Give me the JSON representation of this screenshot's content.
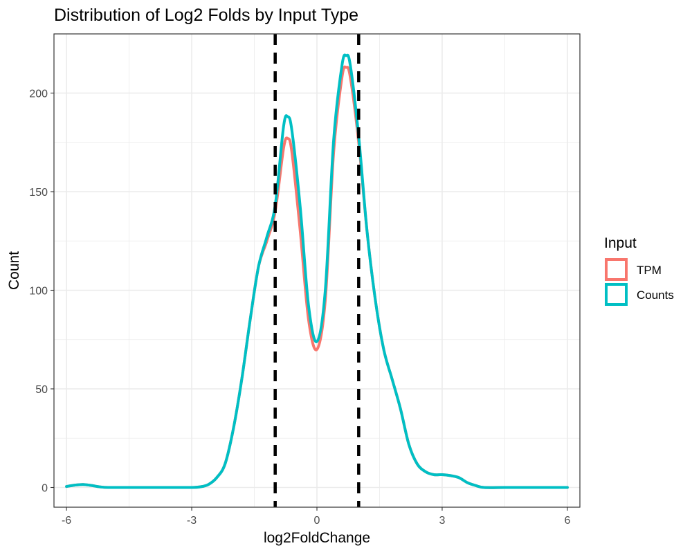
{
  "chart_data": {
    "type": "line",
    "title": "Distribution of Log2 Folds by Input Type",
    "xlabel": "log2FoldChange",
    "ylabel": "Count",
    "xlim": [
      -6.3,
      6.3
    ],
    "ylim": [
      -10,
      230
    ],
    "x_ticks": [
      -6,
      -3,
      0,
      3,
      6
    ],
    "y_ticks": [
      0,
      50,
      100,
      150,
      200
    ],
    "grid": true,
    "legend": {
      "title": "Input",
      "position": "right",
      "entries": [
        "TPM",
        "Counts"
      ]
    },
    "reference_lines": {
      "x": [
        -1,
        1
      ],
      "style": "dashed",
      "color": "#000000"
    },
    "series": [
      {
        "name": "TPM",
        "color": "#F8766D",
        "x": [
          -6,
          -5.8,
          -5.6,
          -5.4,
          -5.2,
          -5,
          -4.5,
          -4,
          -3.5,
          -3,
          -2.8,
          -2.6,
          -2.4,
          -2.2,
          -2,
          -1.8,
          -1.6,
          -1.4,
          -1.2,
          -1,
          -0.8,
          -0.7,
          -0.6,
          -0.4,
          -0.2,
          0,
          0.2,
          0.4,
          0.6,
          0.7,
          0.8,
          1,
          1.2,
          1.4,
          1.6,
          1.8,
          2,
          2.2,
          2.4,
          2.6,
          2.8,
          3,
          3.2,
          3.4,
          3.6,
          3.8,
          4,
          4.5,
          5,
          5.5,
          6
        ],
        "y": [
          0.5,
          1.2,
          1.5,
          1,
          0.3,
          0,
          0,
          0,
          0,
          0,
          0.3,
          1.5,
          5,
          12,
          30,
          55,
          85,
          112,
          125,
          140,
          172,
          177,
          170,
          130,
          85,
          70,
          95,
          170,
          208,
          213,
          208,
          175,
          130,
          95,
          70,
          55,
          40,
          22,
          12,
          8,
          6.5,
          6.5,
          6,
          5,
          2.5,
          1,
          0,
          0,
          0,
          0,
          0
        ]
      },
      {
        "name": "Counts",
        "color": "#00BFC4",
        "x": [
          -6,
          -5.8,
          -5.6,
          -5.4,
          -5.2,
          -5,
          -4.5,
          -4,
          -3.5,
          -3,
          -2.8,
          -2.6,
          -2.4,
          -2.2,
          -2,
          -1.8,
          -1.6,
          -1.4,
          -1.2,
          -1,
          -0.8,
          -0.7,
          -0.6,
          -0.4,
          -0.2,
          0,
          0.2,
          0.4,
          0.6,
          0.7,
          0.8,
          1,
          1.2,
          1.4,
          1.6,
          1.8,
          2,
          2.2,
          2.4,
          2.6,
          2.8,
          3,
          3.2,
          3.4,
          3.6,
          3.8,
          4,
          4.5,
          5,
          5.5,
          6
        ],
        "y": [
          0.5,
          1.2,
          1.5,
          1,
          0.3,
          0,
          0,
          0,
          0,
          0,
          0.3,
          1.5,
          5,
          12,
          30,
          55,
          85,
          112,
          127,
          143,
          183,
          188,
          181,
          142,
          92,
          74,
          100,
          176,
          214,
          219,
          214,
          178,
          130,
          95,
          70,
          55,
          40,
          22,
          12,
          8,
          6.5,
          6.5,
          6,
          5,
          2.5,
          1,
          0,
          0,
          0,
          0,
          0
        ]
      }
    ]
  }
}
